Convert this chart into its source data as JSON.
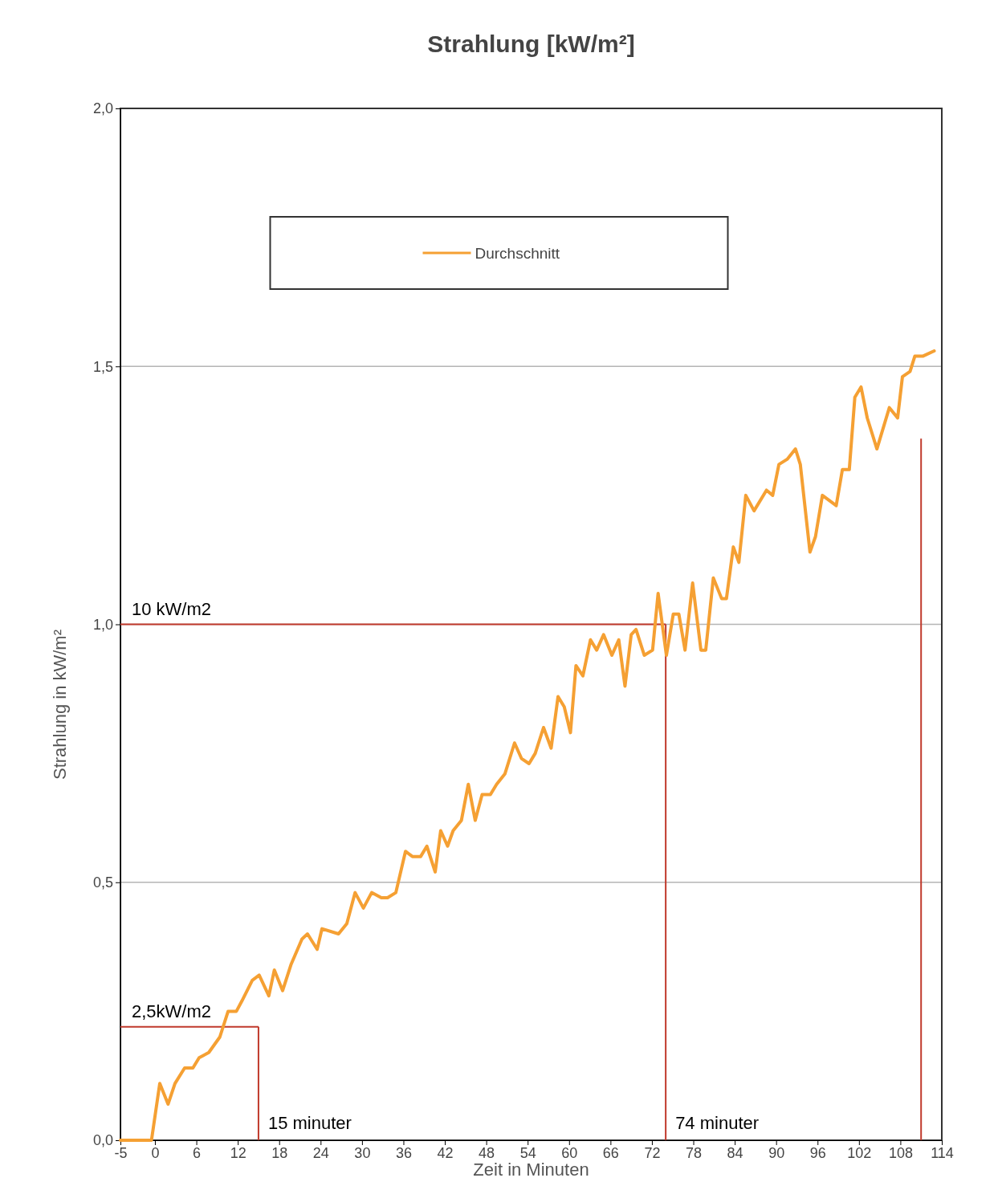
{
  "chart_data": {
    "type": "line",
    "title": "Strahlung [kW/m²]",
    "xlabel": "Zeit in Minuten",
    "ylabel": "Strahlung in kW/m²",
    "x": [
      -5,
      -0.5,
      0.7,
      1.9,
      2.9,
      4.3,
      5.5,
      6.4,
      7.8,
      9.4,
      10.6,
      11.8,
      12.6,
      14.1,
      15.1,
      16.5,
      17.3,
      18.5,
      19.7,
      21.3,
      22.1,
      23.5,
      24.2,
      26.6,
      27.8,
      29.0,
      30.2,
      31.4,
      32.8,
      33.7,
      34.9,
      36.3,
      37.3,
      38.5,
      39.4,
      40.6,
      41.4,
      42.4,
      43.2,
      44.4,
      45.4,
      46.4,
      47.4,
      48.6,
      49.5,
      50.7,
      52.1,
      53.1,
      54.2,
      55.1,
      56.3,
      57.4,
      58.4,
      59.3,
      60.2,
      61.0,
      62.0,
      63.1,
      64.0,
      65.0,
      66.2,
      67.2,
      68.1,
      69.0,
      69.7,
      70.9,
      72.1,
      72.9,
      74.1,
      75.1,
      75.9,
      76.8,
      77.9,
      79.1,
      79.8,
      80.9,
      82.1,
      82.8,
      83.8,
      84.6,
      85.6,
      86.8,
      88.6,
      89.5,
      90.4,
      91.6,
      92.8,
      93.5,
      94.9,
      95.7,
      96.7,
      98.7,
      99.6,
      100.6,
      101.4,
      102.3,
      103.2,
      104.6,
      106.4,
      107.6,
      108.3,
      109.4,
      110.1,
      111.3,
      112.9
    ],
    "series": [
      {
        "name": "Durchschnitt",
        "color": "#f5a033",
        "values": [
          0,
          0,
          0.11,
          0.07,
          0.11,
          0.14,
          0.14,
          0.16,
          0.17,
          0.2,
          0.25,
          0.25,
          0.27,
          0.31,
          0.32,
          0.28,
          0.33,
          0.29,
          0.34,
          0.39,
          0.4,
          0.37,
          0.41,
          0.4,
          0.42,
          0.48,
          0.45,
          0.48,
          0.47,
          0.47,
          0.48,
          0.56,
          0.55,
          0.55,
          0.57,
          0.52,
          0.6,
          0.57,
          0.6,
          0.62,
          0.69,
          0.62,
          0.67,
          0.67,
          0.69,
          0.71,
          0.77,
          0.74,
          0.73,
          0.75,
          0.8,
          0.76,
          0.86,
          0.84,
          0.79,
          0.92,
          0.9,
          0.97,
          0.95,
          0.98,
          0.94,
          0.97,
          0.88,
          0.98,
          0.99,
          0.94,
          0.95,
          1.06,
          0.94,
          1.02,
          1.02,
          0.95,
          1.08,
          0.95,
          0.95,
          1.09,
          1.05,
          1.05,
          1.15,
          1.12,
          1.25,
          1.22,
          1.26,
          1.25,
          1.31,
          1.32,
          1.34,
          1.31,
          1.14,
          1.17,
          1.25,
          1.23,
          1.3,
          1.3,
          1.44,
          1.46,
          1.4,
          1.34,
          1.42,
          1.4,
          1.48,
          1.49,
          1.52,
          1.52,
          1.53
        ]
      }
    ],
    "xlim": [
      -5,
      114
    ],
    "xticks": [
      -5,
      0,
      6,
      12,
      18,
      24,
      30,
      36,
      42,
      48,
      54,
      60,
      66,
      72,
      78,
      84,
      90,
      96,
      102,
      108,
      114
    ],
    "ylim": [
      0,
      2
    ],
    "yticks": [
      {
        "value": 0,
        "label": "0,0"
      },
      {
        "value": 0.5,
        "label": "0,5"
      },
      {
        "value": 1,
        "label": "1,0"
      },
      {
        "value": 1.5,
        "label": "1,5"
      },
      {
        "value": 2,
        "label": "2,0"
      }
    ],
    "grid": "y",
    "legend": "top",
    "marker": "none",
    "line_style": "solid",
    "ref_lines": [
      {
        "axis": "y",
        "value": 1.0,
        "label": "10 kW/m2",
        "color": "#c0392b"
      },
      {
        "axis": "x",
        "value": 74,
        "label": "74 minuter",
        "color": "#c0392b"
      },
      {
        "axis": "y",
        "value": 0.22,
        "label": "2,5kW/m2",
        "color": "#c0392b"
      },
      {
        "axis": "x",
        "value": 15,
        "label": "15 minuter",
        "color": "#c0392b"
      },
      {
        "axis": "x",
        "value": 111,
        "color": "#c0392b"
      }
    ]
  }
}
